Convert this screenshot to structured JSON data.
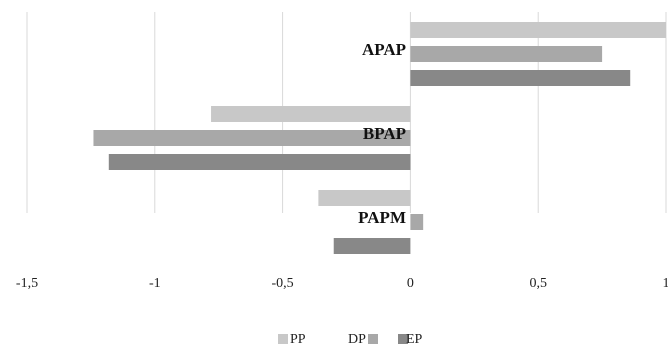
{
  "chart_data": {
    "type": "bar",
    "orientation": "horizontal",
    "categories": [
      "APAP",
      "BPAP",
      "PAPM"
    ],
    "series": [
      {
        "name": "PP",
        "color": "#c8c8c8",
        "values": [
          1.0,
          -0.78,
          -0.36
        ]
      },
      {
        "name": "DP",
        "color": "#a8a8a8",
        "values": [
          0.75,
          -1.24,
          0.05
        ]
      },
      {
        "name": "EP",
        "color": "#888888",
        "values": [
          0.86,
          -1.18,
          -0.3
        ]
      }
    ],
    "xlim": [
      -1.5,
      1
    ],
    "xticks": [
      -1.5,
      -1,
      -0.5,
      0,
      0.5,
      1
    ],
    "xtick_labels": [
      "-1,5",
      "-1",
      "-0,5",
      "0",
      "0,5",
      "1"
    ],
    "grid": "vertical",
    "legend_position": "bottom",
    "title": "",
    "xlabel": "",
    "ylabel": ""
  }
}
